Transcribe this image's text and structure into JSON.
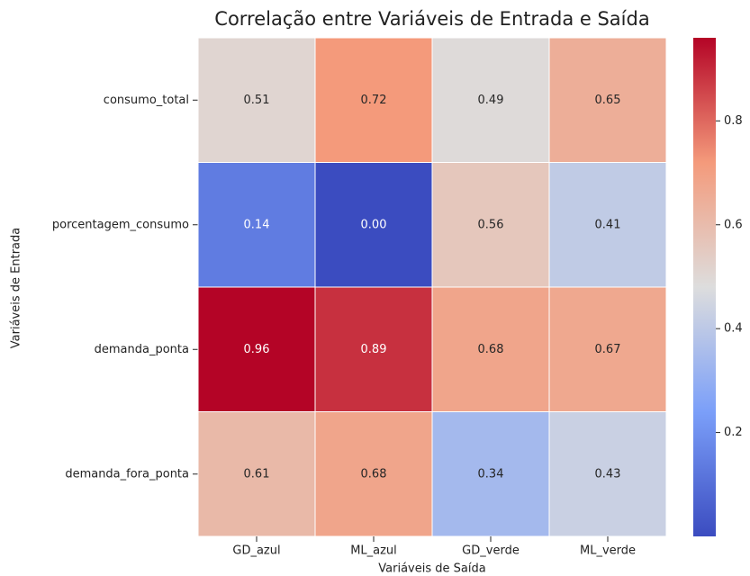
{
  "chart_data": {
    "type": "heatmap",
    "title": "Correlação entre Variáveis de Entrada e Saída",
    "xlabel": "Variáveis de Saída",
    "ylabel": "Variáveis de Entrada",
    "x": [
      "GD_azul",
      "ML_azul",
      "GD_verde",
      "ML_verde"
    ],
    "y": [
      "consumo_total",
      "porcentagem_consumo",
      "demanda_ponta",
      "demanda_fora_ponta"
    ],
    "values": [
      [
        0.51,
        0.72,
        0.49,
        0.65
      ],
      [
        0.14,
        0,
        0.56,
        0.41
      ],
      [
        0.96,
        0.89,
        0.68,
        0.67
      ],
      [
        0.61,
        0.68,
        0.34,
        0.43
      ]
    ],
    "value_labels": [
      [
        "0.51",
        "0.72",
        "0.49",
        "0.65"
      ],
      [
        "0.14",
        "0.00",
        "0.56",
        "0.41"
      ],
      [
        "0.96",
        "0.89",
        "0.68",
        "0.67"
      ],
      [
        "0.61",
        "0.68",
        "0.34",
        "0.43"
      ]
    ],
    "colormap": [
      "#3b4cc0",
      "#7b9ff9",
      "#dddddd",
      "#f49a7b",
      "#b40426"
    ],
    "zlim": [
      0,
      0.96
    ],
    "zticks": [
      0.2,
      0.4,
      0.6,
      0.8
    ]
  }
}
